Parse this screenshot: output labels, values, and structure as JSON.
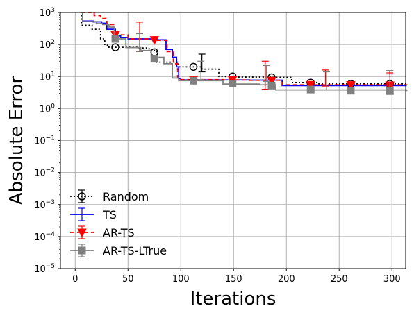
{
  "chart_data": {
    "type": "line",
    "title": "",
    "xlabel": "Iterations",
    "ylabel": "Absolute Error",
    "xlim": [
      -14,
      313
    ],
    "ylim_log10": [
      -5,
      3
    ],
    "yscale": "log",
    "grid": true,
    "legend_placement": "lower-left",
    "x_ticks": [
      0,
      50,
      100,
      150,
      200,
      250,
      300
    ],
    "x_tick_labels": [
      "0",
      "50",
      "100",
      "150",
      "200",
      "250",
      "300"
    ],
    "y_ticks_exp": [
      -5,
      -4,
      -3,
      -2,
      -1,
      0,
      1,
      2,
      3
    ],
    "y_tick_labels": [
      {
        "base": "10",
        "exp": "−5"
      },
      {
        "base": "10",
        "exp": "−4"
      },
      {
        "base": "10",
        "exp": "−3"
      },
      {
        "base": "10",
        "exp": "−2"
      },
      {
        "base": "10",
        "exp": "−1"
      },
      {
        "base": "10",
        "exp": "0"
      },
      {
        "base": "10",
        "exp": "1"
      },
      {
        "base": "10",
        "exp": "2"
      },
      {
        "base": "10",
        "exp": "3"
      }
    ],
    "series": [
      {
        "name": "Random",
        "color": "#000000",
        "dash": "2,3",
        "marker": "open-circle",
        "steps": [
          [
            5,
            1300
          ],
          [
            6,
            400
          ],
          [
            16,
            300
          ],
          [
            24,
            150
          ],
          [
            28,
            95
          ],
          [
            32,
            82
          ],
          [
            60,
            78
          ],
          [
            70,
            65
          ],
          [
            77,
            28
          ],
          [
            98,
            20
          ],
          [
            120,
            17
          ],
          [
            136,
            10
          ],
          [
            150,
            9.6
          ],
          [
            186,
            9.4
          ],
          [
            205,
            6.5
          ],
          [
            230,
            5.9
          ],
          [
            314,
            5.9
          ]
        ],
        "markers": [
          {
            "x": 38,
            "y": 82
          },
          {
            "x": 75,
            "y": 57
          },
          {
            "x": 112,
            "y": 20
          },
          {
            "x": 149,
            "y": 10
          },
          {
            "x": 186,
            "y": 9.4
          },
          {
            "x": 223,
            "y": 6.4
          },
          {
            "x": 261,
            "y": 5.9
          },
          {
            "x": 298,
            "y": 5.9
          }
        ],
        "errorbars": [
          {
            "x": 61,
            "lo": 60,
            "hi": 220
          },
          {
            "x": 120,
            "lo": 14,
            "hi": 50
          },
          {
            "x": 298,
            "lo": 5.2,
            "hi": 15
          }
        ]
      },
      {
        "name": "TS",
        "color": "#0000ff",
        "dash": "",
        "marker": "none",
        "steps": [
          [
            5,
            1300
          ],
          [
            7,
            540
          ],
          [
            17,
            510
          ],
          [
            25,
            460
          ],
          [
            30,
            300
          ],
          [
            38,
            185
          ],
          [
            43,
            165
          ],
          [
            50,
            150
          ],
          [
            78,
            140
          ],
          [
            86,
            70
          ],
          [
            92,
            40
          ],
          [
            96,
            20
          ],
          [
            98,
            8.5
          ],
          [
            100,
            7.8
          ],
          [
            165,
            7.7
          ],
          [
            196,
            5.2
          ],
          [
            314,
            5.2
          ]
        ],
        "markers": [],
        "errorbars": []
      },
      {
        "name": "AR-TS",
        "color": "#ff0000",
        "dash": "6,4",
        "marker": "filled-triangle-down",
        "steps": [
          [
            5,
            1300
          ],
          [
            18,
            800
          ],
          [
            24,
            650
          ],
          [
            30,
            420
          ],
          [
            37,
            200
          ],
          [
            50,
            150
          ],
          [
            78,
            135
          ],
          [
            87,
            60
          ],
          [
            93,
            25
          ],
          [
            97,
            9
          ],
          [
            100,
            8
          ],
          [
            140,
            7.8
          ],
          [
            165,
            7.6
          ],
          [
            196,
            5.5
          ],
          [
            314,
            5.4
          ]
        ],
        "markers": [
          {
            "x": 38,
            "y": 200
          },
          {
            "x": 75,
            "y": 138
          },
          {
            "x": 112,
            "y": 8
          },
          {
            "x": 149,
            "y": 7.8
          },
          {
            "x": 186,
            "y": 7.4
          },
          {
            "x": 223,
            "y": 5.5
          },
          {
            "x": 261,
            "y": 5.4
          },
          {
            "x": 298,
            "y": 5.3
          }
        ],
        "errorbars": [
          {
            "x": 61,
            "lo": 60,
            "hi": 500
          },
          {
            "x": 180,
            "lo": 4,
            "hi": 30
          },
          {
            "x": 237,
            "lo": 5,
            "hi": 16
          },
          {
            "x": 298,
            "lo": 5,
            "hi": 13
          }
        ]
      },
      {
        "name": "AR-TS-LTrue",
        "color": "#808080",
        "dash": "",
        "marker": "filled-square",
        "steps": [
          [
            5,
            1300
          ],
          [
            7,
            520
          ],
          [
            20,
            450
          ],
          [
            26,
            420
          ],
          [
            32,
            350
          ],
          [
            37,
            150
          ],
          [
            48,
            80
          ],
          [
            62,
            65
          ],
          [
            72,
            40
          ],
          [
            84,
            25
          ],
          [
            92,
            9
          ],
          [
            98,
            7.4
          ],
          [
            140,
            5.8
          ],
          [
            175,
            5.5
          ],
          [
            190,
            3.8
          ],
          [
            314,
            3.5
          ]
        ],
        "markers": [
          {
            "x": 38,
            "y": 150
          },
          {
            "x": 75,
            "y": 36
          },
          {
            "x": 112,
            "y": 7.4
          },
          {
            "x": 149,
            "y": 6
          },
          {
            "x": 186,
            "y": 5.2
          },
          {
            "x": 223,
            "y": 3.9
          },
          {
            "x": 261,
            "y": 3.6
          },
          {
            "x": 298,
            "y": 3.5
          }
        ],
        "errorbars": [
          {
            "x": 61,
            "lo": 60,
            "hi": 220
          },
          {
            "x": 119,
            "lo": 8,
            "hi": 30
          },
          {
            "x": 181,
            "lo": 7,
            "hi": 22
          },
          {
            "x": 238,
            "lo": 3.8,
            "hi": 14
          },
          {
            "x": 298,
            "lo": 3.5,
            "hi": 12
          }
        ]
      }
    ]
  }
}
